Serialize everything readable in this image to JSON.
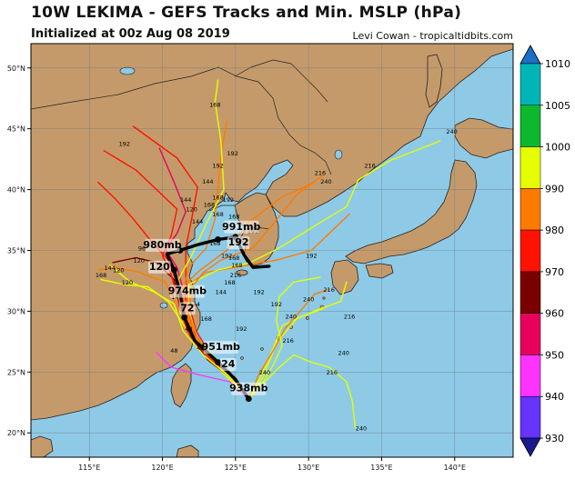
{
  "header": {
    "title": "10W LEKIMA - GEFS Tracks and Min. MSLP (hPa)",
    "init": "Initialized at 00z Aug 08 2019",
    "credit": "Levi Cowan - tropicaltidbits.com"
  },
  "colors": {
    "ocean": "#8ecae6",
    "land": "#c59a6a",
    "grid": "#6b7f8c",
    "mean_track": "#000000"
  },
  "map": {
    "lon_range": [
      111,
      144
    ],
    "lat_range": [
      18,
      52
    ],
    "lon_ticks": [
      {
        "value": 115,
        "label": "115°E"
      },
      {
        "value": 120,
        "label": "120°E"
      },
      {
        "value": 125,
        "label": "125°E"
      },
      {
        "value": 130,
        "label": "130°E"
      },
      {
        "value": 135,
        "label": "135°E"
      },
      {
        "value": 140,
        "label": "140°E"
      }
    ],
    "lat_ticks": [
      {
        "value": 20,
        "label": "20°N"
      },
      {
        "value": 25,
        "label": "25°N"
      },
      {
        "value": 30,
        "label": "30°N"
      },
      {
        "value": 35,
        "label": "35°N"
      },
      {
        "value": 40,
        "label": "40°N"
      },
      {
        "value": 45,
        "label": "45°N"
      },
      {
        "value": 50,
        "label": "50°N"
      }
    ]
  },
  "colorbar": {
    "entries": [
      {
        "value": "1010",
        "color": "#1a6fc9"
      },
      {
        "value": "1005",
        "color": "#00b5b5"
      },
      {
        "value": "1000",
        "color": "#0cb82e"
      },
      {
        "value": "990",
        "color": "#e5ff00"
      },
      {
        "value": "980",
        "color": "#ff7a00"
      },
      {
        "value": "970",
        "color": "#ff1200"
      },
      {
        "value": "960",
        "color": "#7a0000"
      },
      {
        "value": "950",
        "color": "#e6005c"
      },
      {
        "value": "940",
        "color": "#ff33ff"
      },
      {
        "value": "930",
        "color": "#6633ff"
      }
    ],
    "bottom_color": "#1a1a8c"
  },
  "mean_track": {
    "points": [
      [
        125.9,
        22.8
      ],
      [
        125.0,
        24.4
      ],
      [
        123.8,
        25.8
      ],
      [
        122.2,
        27.6
      ],
      [
        121.5,
        29.5
      ],
      [
        121.2,
        31.5
      ],
      [
        120.8,
        33.4
      ],
      [
        120.3,
        34.7
      ],
      [
        121.2,
        35.0
      ],
      [
        122.5,
        35.5
      ],
      [
        123.8,
        35.9
      ],
      [
        125.0,
        36.1
      ],
      [
        125.6,
        34.6
      ],
      [
        126.2,
        33.6
      ],
      [
        127.3,
        33.7
      ]
    ],
    "labels": [
      {
        "text": "938mb",
        "lon": 125.9,
        "lat": 23.4
      },
      {
        "text": "24",
        "lon": 124.5,
        "lat": 25.4
      },
      {
        "text": "951mb",
        "lon": 124.0,
        "lat": 26.8
      },
      {
        "text": "72",
        "lon": 121.7,
        "lat": 30.0
      },
      {
        "text": "974mb",
        "lon": 121.7,
        "lat": 31.4
      },
      {
        "text": "120",
        "lon": 119.8,
        "lat": 33.4
      },
      {
        "text": "980mb",
        "lon": 120.0,
        "lat": 35.2
      },
      {
        "text": "192",
        "lon": 125.2,
        "lat": 35.4
      },
      {
        "text": "991mb",
        "lon": 125.4,
        "lat": 36.7
      }
    ]
  },
  "member_tracks": [
    {
      "color": "#e6005c",
      "points": [
        [
          125.9,
          22.8
        ],
        [
          124.8,
          24.6
        ],
        [
          123.2,
          26.4
        ],
        [
          122.0,
          28.6
        ],
        [
          121.6,
          31.0
        ],
        [
          121.0,
          33.6
        ],
        [
          120.2,
          35.1
        ],
        [
          121.0,
          36.4
        ],
        [
          121.6,
          38.2
        ],
        [
          120.8,
          40.6
        ],
        [
          119.8,
          43.4
        ]
      ]
    },
    {
      "color": "#ff1200",
      "points": [
        [
          125.9,
          22.8
        ],
        [
          124.6,
          24.8
        ],
        [
          123.0,
          26.6
        ],
        [
          121.8,
          28.8
        ],
        [
          121.3,
          31.4
        ],
        [
          120.4,
          34.2
        ],
        [
          119.2,
          35.8
        ],
        [
          118.0,
          37.6
        ],
        [
          116.8,
          39.2
        ],
        [
          115.6,
          40.6
        ]
      ]
    },
    {
      "color": "#ff1200",
      "points": [
        [
          125.9,
          22.8
        ],
        [
          124.9,
          24.5
        ],
        [
          123.4,
          26.2
        ],
        [
          122.3,
          28.4
        ],
        [
          121.8,
          30.6
        ],
        [
          121.6,
          32.8
        ],
        [
          121.6,
          35.2
        ],
        [
          122.0,
          37.6
        ],
        [
          122.4,
          40.2
        ],
        [
          121.0,
          42.6
        ],
        [
          118.0,
          45.2
        ]
      ]
    },
    {
      "color": "#ff7a00",
      "points": [
        [
          125.9,
          22.8
        ],
        [
          125.0,
          24.4
        ],
        [
          123.6,
          25.9
        ],
        [
          122.3,
          27.8
        ],
        [
          121.6,
          29.6
        ],
        [
          121.4,
          31.6
        ],
        [
          121.8,
          33.6
        ],
        [
          123.0,
          35.2
        ],
        [
          123.6,
          37.6
        ],
        [
          123.8,
          40.2
        ],
        [
          124.0,
          42.8
        ],
        [
          124.4,
          45.6
        ]
      ]
    },
    {
      "color": "#ff7a00",
      "points": [
        [
          125.9,
          22.8
        ],
        [
          124.8,
          24.6
        ],
        [
          123.1,
          26.2
        ],
        [
          121.8,
          28.2
        ],
        [
          121.0,
          30.4
        ],
        [
          120.2,
          32.4
        ],
        [
          118.4,
          33.2
        ],
        [
          116.8,
          33.6
        ],
        [
          115.6,
          33.4
        ]
      ]
    },
    {
      "color": "#e5ff00",
      "points": [
        [
          125.9,
          22.8
        ],
        [
          124.8,
          24.6
        ],
        [
          123.2,
          26.4
        ],
        [
          121.6,
          28.6
        ],
        [
          120.4,
          30.8
        ],
        [
          119.0,
          32.0
        ],
        [
          117.4,
          32.2
        ],
        [
          115.8,
          32.6
        ]
      ]
    },
    {
      "color": "#e5ff00",
      "points": [
        [
          125.9,
          22.8
        ],
        [
          124.6,
          24.4
        ],
        [
          123.2,
          26.0
        ],
        [
          122.0,
          27.8
        ],
        [
          121.2,
          30.0
        ],
        [
          121.0,
          32.4
        ],
        [
          122.0,
          34.6
        ],
        [
          123.0,
          37.2
        ],
        [
          124.2,
          40.0
        ],
        [
          124.0,
          44.0
        ],
        [
          123.6,
          47.2
        ],
        [
          123.8,
          49.0
        ]
      ]
    },
    {
      "color": "#e5ff00",
      "points": [
        [
          125.9,
          22.8
        ],
        [
          126.8,
          24.8
        ],
        [
          127.6,
          27.0
        ],
        [
          128.2,
          28.8
        ],
        [
          129.6,
          29.6
        ],
        [
          131.0,
          30.2
        ]
      ]
    },
    {
      "color": "#e5ff00",
      "points": [
        [
          125.9,
          22.8
        ],
        [
          126.9,
          24.6
        ],
        [
          127.8,
          27.4
        ],
        [
          129.2,
          29.4
        ],
        [
          130.8,
          30.2
        ],
        [
          132.2,
          30.8
        ],
        [
          132.6,
          32.4
        ]
      ]
    },
    {
      "color": "#e5ff00",
      "points": [
        [
          125.9,
          22.8
        ],
        [
          127.0,
          24.2
        ],
        [
          128.0,
          25.4
        ],
        [
          129.0,
          26.4
        ],
        [
          130.2,
          25.8
        ],
        [
          131.4,
          25.4
        ],
        [
          132.6,
          24.2
        ],
        [
          133.0,
          22.6
        ],
        [
          133.2,
          20.4
        ]
      ]
    },
    {
      "color": "#ff7a00",
      "points": [
        [
          125.9,
          22.8
        ],
        [
          126.6,
          24.8
        ],
        [
          127.6,
          26.8
        ],
        [
          128.4,
          28.6
        ],
        [
          129.0,
          29.4
        ],
        [
          130.4,
          31.4
        ],
        [
          131.4,
          31.8
        ]
      ]
    },
    {
      "color": "#e5ff00",
      "points": [
        [
          125.9,
          22.8
        ],
        [
          126.8,
          24.0
        ],
        [
          127.6,
          25.6
        ],
        [
          128.2,
          27.2
        ],
        [
          127.8,
          29.2
        ],
        [
          128.0,
          31.2
        ],
        [
          129.0,
          32.4
        ],
        [
          130.8,
          32.8
        ]
      ]
    },
    {
      "color": "#ff7a00",
      "points": [
        [
          125.9,
          22.8
        ],
        [
          124.9,
          24.5
        ],
        [
          123.5,
          26.1
        ],
        [
          122.2,
          28.0
        ],
        [
          121.6,
          30.2
        ],
        [
          121.8,
          32.2
        ],
        [
          123.0,
          33.2
        ],
        [
          125.0,
          33.6
        ],
        [
          127.8,
          34.2
        ],
        [
          130.2,
          35.0
        ],
        [
          132.8,
          38.0
        ]
      ]
    },
    {
      "color": "#e5ff00",
      "points": [
        [
          125.9,
          22.8
        ],
        [
          125.0,
          24.4
        ],
        [
          123.8,
          25.8
        ],
        [
          122.4,
          27.8
        ],
        [
          121.8,
          30.0
        ],
        [
          121.8,
          32.2
        ],
        [
          123.8,
          33.4
        ],
        [
          126.0,
          34.0
        ],
        [
          128.0,
          35.2
        ],
        [
          130.4,
          37.0
        ],
        [
          132.6,
          38.6
        ],
        [
          133.4,
          40.8
        ],
        [
          135.6,
          42.4
        ],
        [
          139.0,
          44.0
        ]
      ]
    },
    {
      "color": "#ff7a00",
      "points": [
        [
          125.9,
          22.8
        ],
        [
          124.8,
          24.4
        ],
        [
          123.4,
          25.8
        ],
        [
          122.0,
          27.6
        ],
        [
          121.4,
          29.4
        ],
        [
          121.2,
          31.8
        ],
        [
          122.6,
          33.4
        ],
        [
          124.4,
          35.0
        ],
        [
          126.0,
          37.4
        ],
        [
          128.2,
          39.4
        ],
        [
          130.4,
          40.6
        ]
      ]
    },
    {
      "color": "#ff33ff",
      "points": [
        [
          125.9,
          22.8
        ],
        [
          124.6,
          24.2
        ],
        [
          122.4,
          24.8
        ],
        [
          120.6,
          25.4
        ],
        [
          119.6,
          26.6
        ]
      ]
    },
    {
      "color": "#7a0000",
      "points": [
        [
          125.9,
          22.8
        ],
        [
          124.7,
          24.5
        ],
        [
          123.1,
          26.0
        ],
        [
          121.9,
          28.0
        ],
        [
          121.2,
          30.2
        ],
        [
          120.8,
          32.6
        ],
        [
          119.6,
          34.0
        ],
        [
          118.2,
          34.4
        ],
        [
          116.6,
          34.0
        ]
      ]
    },
    {
      "color": "#ff1200",
      "points": [
        [
          125.9,
          22.8
        ],
        [
          124.8,
          24.6
        ],
        [
          123.0,
          26.4
        ],
        [
          121.7,
          28.4
        ],
        [
          121.1,
          30.8
        ],
        [
          120.6,
          33.0
        ],
        [
          120.0,
          34.6
        ],
        [
          120.6,
          36.2
        ],
        [
          121.0,
          38.4
        ],
        [
          118.2,
          41.6
        ],
        [
          116.0,
          43.2
        ]
      ]
    },
    {
      "color": "#ff7a00",
      "points": [
        [
          125.9,
          22.8
        ],
        [
          124.9,
          24.4
        ],
        [
          123.6,
          26.0
        ],
        [
          122.4,
          27.8
        ],
        [
          121.8,
          29.8
        ],
        [
          121.9,
          31.8
        ],
        [
          122.8,
          33.2
        ],
        [
          124.0,
          34.2
        ],
        [
          126.2,
          35.2
        ],
        [
          127.6,
          37.2
        ],
        [
          129.2,
          39.6
        ],
        [
          131.0,
          41.2
        ]
      ]
    },
    {
      "color": "#e5ff00",
      "points": [
        [
          125.9,
          22.8
        ],
        [
          124.6,
          24.6
        ],
        [
          122.8,
          26.4
        ],
        [
          121.4,
          28.4
        ],
        [
          120.8,
          30.6
        ],
        [
          119.4,
          31.6
        ],
        [
          117.8,
          32.4
        ],
        [
          116.4,
          33.8
        ]
      ]
    }
  ],
  "track_labels": [
    {
      "text": "168",
      "lon": 123.6,
      "lat": 46.8
    },
    {
      "text": "192",
      "lon": 117.4,
      "lat": 43.6
    },
    {
      "text": "192",
      "lon": 124.8,
      "lat": 42.8
    },
    {
      "text": "192",
      "lon": 123.8,
      "lat": 41.8
    },
    {
      "text": "144",
      "lon": 123.1,
      "lat": 40.5
    },
    {
      "text": "168",
      "lon": 123.8,
      "lat": 39.2
    },
    {
      "text": "192",
      "lon": 124.5,
      "lat": 39.0
    },
    {
      "text": "168",
      "lon": 123.2,
      "lat": 38.6
    },
    {
      "text": "120",
      "lon": 122.0,
      "lat": 38.2
    },
    {
      "text": "144",
      "lon": 121.6,
      "lat": 39.0
    },
    {
      "text": "168",
      "lon": 124.9,
      "lat": 37.6
    },
    {
      "text": "168",
      "lon": 123.8,
      "lat": 37.8
    },
    {
      "text": "144",
      "lon": 122.4,
      "lat": 37.2
    },
    {
      "text": "216",
      "lon": 130.8,
      "lat": 41.2
    },
    {
      "text": "240",
      "lon": 131.2,
      "lat": 40.5
    },
    {
      "text": "216",
      "lon": 134.2,
      "lat": 41.8
    },
    {
      "text": "240",
      "lon": 139.8,
      "lat": 44.6
    },
    {
      "text": "192",
      "lon": 126.2,
      "lat": 36.4
    },
    {
      "text": "192",
      "lon": 130.2,
      "lat": 34.4
    },
    {
      "text": "168",
      "lon": 123.6,
      "lat": 35.4
    },
    {
      "text": "192",
      "lon": 124.4,
      "lat": 34.4
    },
    {
      "text": "168",
      "lon": 125.1,
      "lat": 33.6
    },
    {
      "text": "216",
      "lon": 125.0,
      "lat": 32.8
    },
    {
      "text": "168",
      "lon": 124.6,
      "lat": 32.2
    },
    {
      "text": "144",
      "lon": 124.0,
      "lat": 31.4
    },
    {
      "text": "192",
      "lon": 126.6,
      "lat": 31.4
    },
    {
      "text": "192",
      "lon": 127.8,
      "lat": 30.4
    },
    {
      "text": "240",
      "lon": 128.8,
      "lat": 29.4
    },
    {
      "text": "240",
      "lon": 130.0,
      "lat": 30.8
    },
    {
      "text": "216",
      "lon": 131.4,
      "lat": 31.6
    },
    {
      "text": "216",
      "lon": 132.8,
      "lat": 29.4
    },
    {
      "text": "192",
      "lon": 125.4,
      "lat": 28.4
    },
    {
      "text": "216",
      "lon": 128.6,
      "lat": 27.4
    },
    {
      "text": "240",
      "lon": 132.4,
      "lat": 26.4
    },
    {
      "text": "240",
      "lon": 127.0,
      "lat": 24.8
    },
    {
      "text": "216",
      "lon": 131.6,
      "lat": 24.8
    },
    {
      "text": "240",
      "lon": 133.6,
      "lat": 20.2
    },
    {
      "text": "96",
      "lon": 118.6,
      "lat": 35.0
    },
    {
      "text": "120",
      "lon": 118.4,
      "lat": 34.0
    },
    {
      "text": "144",
      "lon": 116.4,
      "lat": 33.4
    },
    {
      "text": "168",
      "lon": 115.8,
      "lat": 32.8
    },
    {
      "text": "120",
      "lon": 117.0,
      "lat": 33.2
    },
    {
      "text": "120",
      "lon": 117.6,
      "lat": 32.2
    },
    {
      "text": "144",
      "lon": 121.0,
      "lat": 31.0
    },
    {
      "text": "144",
      "lon": 122.2,
      "lat": 30.4
    },
    {
      "text": "48",
      "lon": 122.6,
      "lat": 26.8
    },
    {
      "text": "48",
      "lon": 120.8,
      "lat": 26.6
    },
    {
      "text": "48",
      "lon": 121.8,
      "lat": 28.4
    },
    {
      "text": "168",
      "lon": 123.0,
      "lat": 29.2
    },
    {
      "text": "168",
      "lon": 124.9,
      "lat": 34.2
    }
  ]
}
